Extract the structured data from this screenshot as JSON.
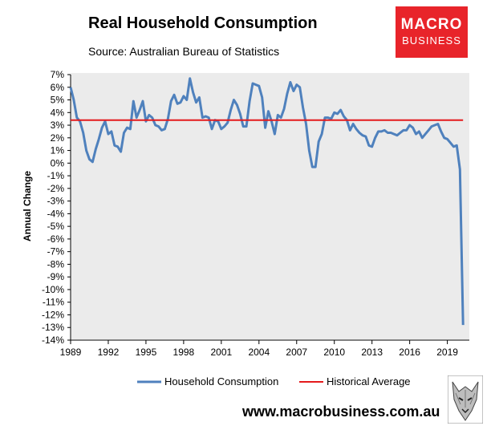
{
  "header": {
    "title": "Real Household Consumption",
    "subtitle": "Source: Australian Bureau of Statistics"
  },
  "logo": {
    "line1": "MACRO",
    "line2": "BUSINESS",
    "color": "#e8242a"
  },
  "footer": {
    "url": "www.macrobusiness.com.au",
    "emblem_icon": "wolf-icon"
  },
  "chart_data": {
    "type": "line",
    "title": "Real Household Consumption",
    "xlabel": "",
    "ylabel": "Annual Change",
    "ylim": [
      -14,
      7
    ],
    "xlim": [
      1989,
      2020.75
    ],
    "grid": false,
    "legend_position": "bottom",
    "x_ticks": [
      1989,
      1992,
      1995,
      1998,
      2001,
      2004,
      2007,
      2010,
      2013,
      2016,
      2019
    ],
    "x_tick_labels": [
      "1989",
      "1992",
      "1995",
      "1998",
      "2001",
      "2004",
      "2007",
      "2010",
      "2013",
      "2016",
      "2019"
    ],
    "y_ticks": [
      7,
      6,
      5,
      4,
      3,
      2,
      1,
      0,
      -1,
      -2,
      -3,
      -4,
      -5,
      -6,
      -7,
      -8,
      -9,
      -10,
      -11,
      -12,
      -13,
      -14
    ],
    "y_tick_labels": [
      "7%",
      "6%",
      "5%",
      "4%",
      "3%",
      "2%",
      "1%",
      "0%",
      "-1%",
      "-2%",
      "-3%",
      "-4%",
      "-5%",
      "-6%",
      "-7%",
      "-8%",
      "-9%",
      "-10%",
      "-11%",
      "-12%",
      "-13%",
      "-14%"
    ],
    "series": [
      {
        "name": "Household Consumption",
        "color": "#4f81bd",
        "x": [
          1989.0,
          1989.25,
          1989.5,
          1989.75,
          1990.0,
          1990.25,
          1990.5,
          1990.75,
          1991.0,
          1991.25,
          1991.5,
          1991.75,
          1992.0,
          1992.25,
          1992.5,
          1992.75,
          1993.0,
          1993.25,
          1993.5,
          1993.75,
          1994.0,
          1994.25,
          1994.5,
          1994.75,
          1995.0,
          1995.25,
          1995.5,
          1995.75,
          1996.0,
          1996.25,
          1996.5,
          1996.75,
          1997.0,
          1997.25,
          1997.5,
          1997.75,
          1998.0,
          1998.25,
          1998.5,
          1998.75,
          1999.0,
          1999.25,
          1999.5,
          1999.75,
          2000.0,
          2000.25,
          2000.5,
          2000.75,
          2001.0,
          2001.25,
          2001.5,
          2001.75,
          2002.0,
          2002.25,
          2002.5,
          2002.75,
          2003.0,
          2003.25,
          2003.5,
          2003.75,
          2004.0,
          2004.25,
          2004.5,
          2004.75,
          2005.0,
          2005.25,
          2005.5,
          2005.75,
          2006.0,
          2006.25,
          2006.5,
          2006.75,
          2007.0,
          2007.25,
          2007.5,
          2007.75,
          2008.0,
          2008.25,
          2008.5,
          2008.75,
          2009.0,
          2009.25,
          2009.5,
          2009.75,
          2010.0,
          2010.25,
          2010.5,
          2010.75,
          2011.0,
          2011.25,
          2011.5,
          2011.75,
          2012.0,
          2012.25,
          2012.5,
          2012.75,
          2013.0,
          2013.25,
          2013.5,
          2013.75,
          2014.0,
          2014.25,
          2014.5,
          2014.75,
          2015.0,
          2015.25,
          2015.5,
          2015.75,
          2016.0,
          2016.25,
          2016.5,
          2016.75,
          2017.0,
          2017.25,
          2017.5,
          2017.75,
          2018.0,
          2018.25,
          2018.5,
          2018.75,
          2019.0,
          2019.25,
          2019.5,
          2019.75,
          2020.0,
          2020.25
        ],
        "values": [
          6.0,
          5.0,
          3.6,
          3.3,
          2.4,
          1.0,
          0.3,
          0.1,
          1.1,
          1.9,
          2.8,
          3.3,
          2.3,
          2.5,
          1.4,
          1.3,
          0.9,
          2.4,
          2.8,
          2.7,
          4.9,
          3.6,
          4.2,
          4.9,
          3.3,
          3.8,
          3.6,
          3.0,
          2.9,
          2.6,
          2.7,
          3.5,
          4.9,
          5.4,
          4.7,
          4.8,
          5.3,
          5.0,
          6.7,
          5.6,
          4.8,
          5.2,
          3.6,
          3.7,
          3.6,
          2.7,
          3.4,
          3.3,
          2.7,
          2.9,
          3.2,
          4.2,
          5.0,
          4.6,
          3.9,
          2.9,
          2.9,
          4.9,
          6.3,
          6.2,
          6.1,
          5.2,
          2.8,
          4.1,
          3.3,
          2.3,
          3.8,
          3.6,
          4.3,
          5.5,
          6.4,
          5.7,
          6.2,
          6.0,
          4.4,
          3.1,
          1.0,
          -0.3,
          -0.3,
          1.7,
          2.3,
          3.6,
          3.6,
          3.5,
          4.0,
          3.9,
          4.2,
          3.7,
          3.4,
          2.6,
          3.1,
          2.7,
          2.4,
          2.2,
          2.1,
          1.4,
          1.3,
          2.0,
          2.5,
          2.5,
          2.6,
          2.4,
          2.4,
          2.3,
          2.2,
          2.4,
          2.6,
          2.6,
          3.0,
          2.8,
          2.3,
          2.5,
          2.0,
          2.3,
          2.6,
          2.9,
          3.0,
          3.1,
          2.5,
          2.0,
          1.9,
          1.6,
          1.3,
          1.4,
          -0.5,
          -12.8
        ]
      },
      {
        "name": "Historical Average",
        "color": "#e41a1c",
        "x": [
          1989.0,
          2020.25
        ],
        "values": [
          3.4,
          3.4
        ]
      }
    ]
  }
}
